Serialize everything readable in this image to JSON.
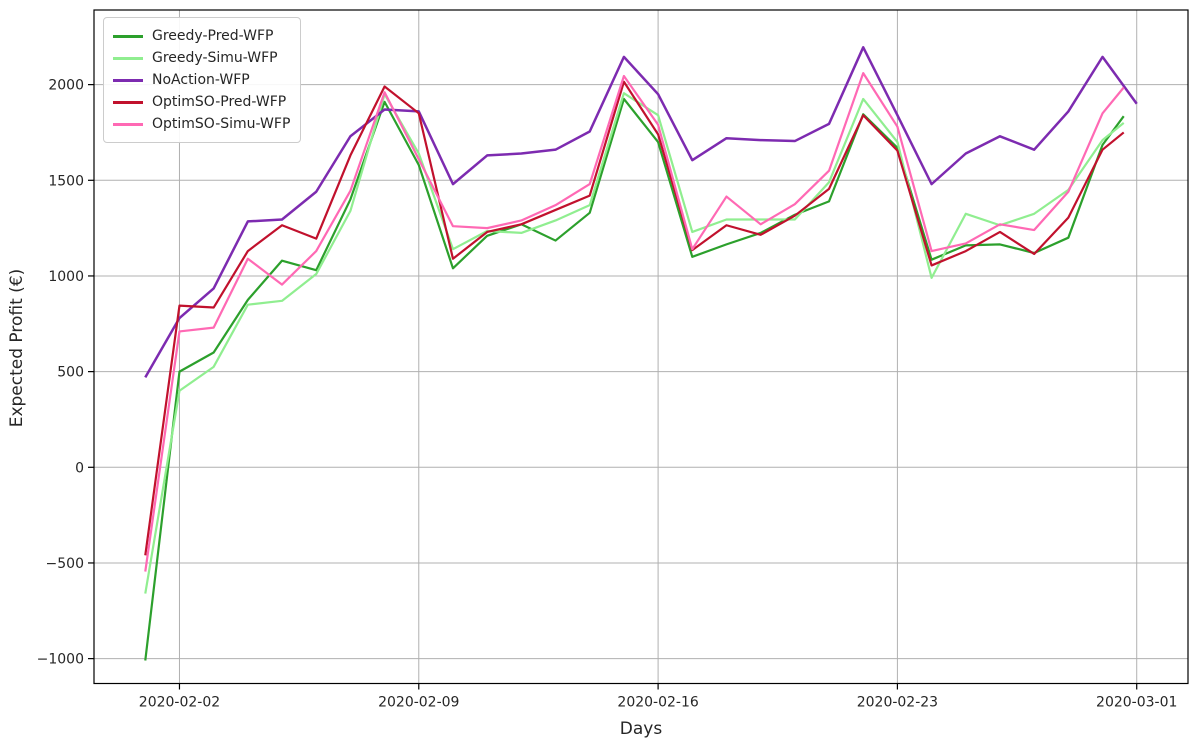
{
  "chart_data": {
    "type": "line",
    "title": "",
    "xlabel": "Days",
    "ylabel": "Expected Profit (€)",
    "grid": true,
    "grid_color": "#b0b0b0",
    "spine_color": "#000000",
    "background_color": "#ffffff",
    "legend_position": "upper-left",
    "xlim_days": [
      -1.5,
      30.5
    ],
    "ylim": [
      -1130,
      2390
    ],
    "x_tick_days": [
      1,
      8,
      15,
      22,
      29
    ],
    "x_tick_labels": [
      "2020-02-02",
      "2020-02-09",
      "2020-02-16",
      "2020-02-23",
      "2020-03-01"
    ],
    "y_ticks": [
      -1000,
      -500,
      0,
      500,
      1000,
      1500,
      2000
    ],
    "y_tick_labels": [
      "−1000",
      "−500",
      "0",
      "500",
      "1000",
      "1500",
      "2000"
    ],
    "dates": [
      "2020-02-01",
      "2020-02-02",
      "2020-02-03",
      "2020-02-04",
      "2020-02-05",
      "2020-02-06",
      "2020-02-07",
      "2020-02-08",
      "2020-02-09",
      "2020-02-10",
      "2020-02-11",
      "2020-02-12",
      "2020-02-13",
      "2020-02-14",
      "2020-02-15",
      "2020-02-16",
      "2020-02-17",
      "2020-02-18",
      "2020-02-19",
      "2020-02-20",
      "2020-02-21",
      "2020-02-22",
      "2020-02-23",
      "2020-02-24",
      "2020-02-25",
      "2020-02-26",
      "2020-02-27",
      "2020-02-28",
      "2020-02-29",
      "2020-03-01"
    ],
    "series": [
      {
        "name": "Greedy-Pred-WFP",
        "color": "#2ca02c",
        "line_width": 2.2,
        "last_day": 28.62,
        "values": [
          -1010,
          500,
          600,
          875,
          1080,
          1030,
          1400,
          1910,
          1580,
          1040,
          1210,
          1270,
          1185,
          1330,
          1925,
          1700,
          1100,
          1165,
          1225,
          1320,
          1390,
          1845,
          1670,
          1085,
          1160,
          1165,
          1120,
          1200,
          1685,
          1835
        ]
      },
      {
        "name": "Greedy-Simu-WFP",
        "color": "#90ee90",
        "line_width": 2.2,
        "last_day": 28.62,
        "values": [
          -660,
          400,
          525,
          850,
          870,
          1010,
          1340,
          1950,
          1640,
          1140,
          1235,
          1225,
          1290,
          1370,
          1955,
          1840,
          1230,
          1295,
          1295,
          1295,
          1490,
          1925,
          1700,
          990,
          1325,
          1265,
          1325,
          1450,
          1710,
          1800
        ]
      },
      {
        "name": "NoAction-WFP",
        "color": "#7d2bb0",
        "line_width": 2.5,
        "last_day": 29,
        "values": [
          470,
          780,
          935,
          1285,
          1295,
          1440,
          1730,
          1870,
          1860,
          1480,
          1630,
          1640,
          1660,
          1755,
          2145,
          1950,
          1605,
          1720,
          1710,
          1705,
          1795,
          2195,
          1840,
          1480,
          1640,
          1730,
          1660,
          1860,
          2145,
          1900
        ]
      },
      {
        "name": "OptimSO-Pred-WFP",
        "color": "#c1112d",
        "line_width": 2.2,
        "last_day": 28.62,
        "values": [
          -460,
          845,
          835,
          1130,
          1265,
          1195,
          1630,
          1990,
          1850,
          1090,
          1230,
          1270,
          1345,
          1420,
          2015,
          1740,
          1135,
          1265,
          1215,
          1315,
          1455,
          1840,
          1655,
          1055,
          1130,
          1230,
          1115,
          1305,
          1660,
          1750
        ]
      },
      {
        "name": "OptimSO-Simu-WFP",
        "color": "#ff69b4",
        "line_width": 2.2,
        "last_day": 28.62,
        "values": [
          -545,
          710,
          730,
          1090,
          955,
          1130,
          1445,
          1960,
          1610,
          1260,
          1250,
          1290,
          1370,
          1480,
          2045,
          1790,
          1140,
          1415,
          1270,
          1375,
          1550,
          2060,
          1780,
          1130,
          1170,
          1270,
          1240,
          1440,
          1850,
          1985
        ]
      }
    ]
  }
}
